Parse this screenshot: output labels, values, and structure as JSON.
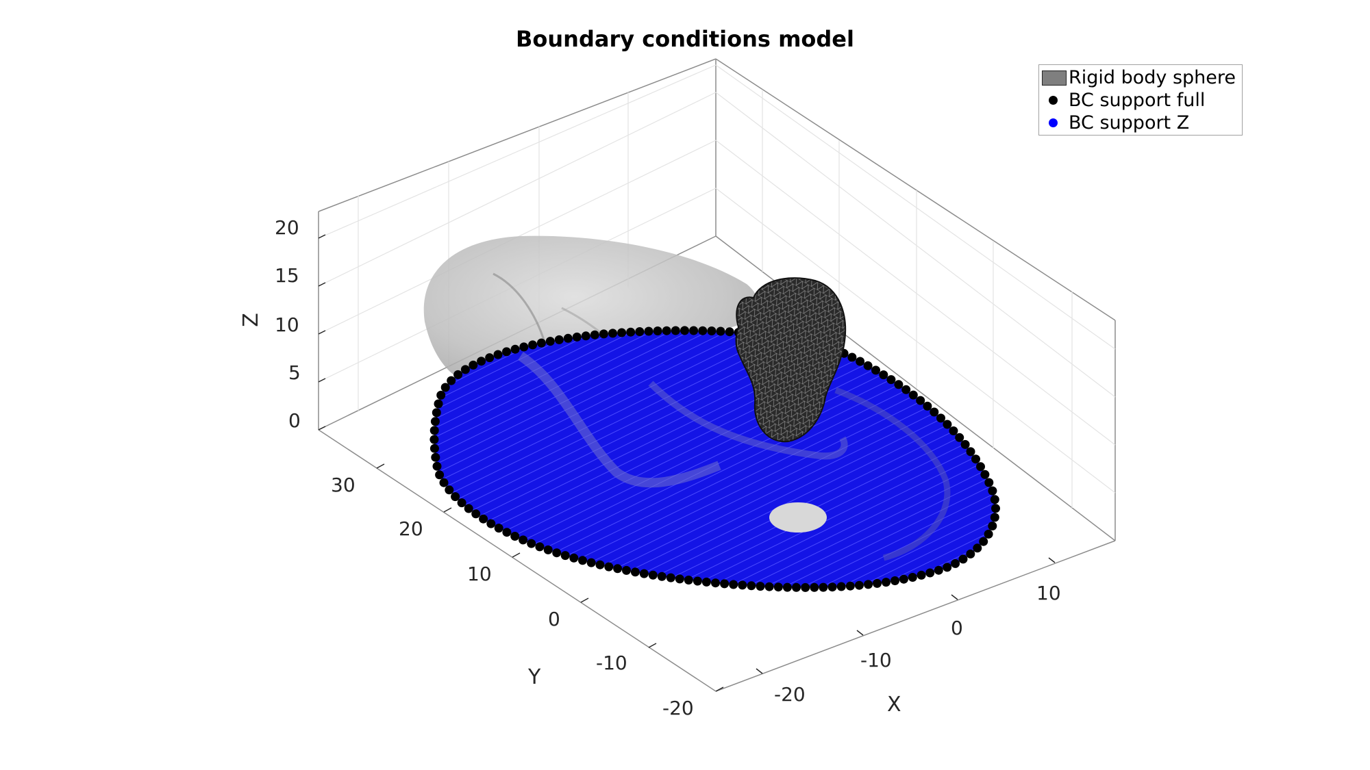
{
  "figure": {
    "title": "Boundary conditions model"
  },
  "axes": {
    "x_label": "X",
    "y_label": "Y",
    "z_label": "Z",
    "x_ticks": [
      "-20",
      "-10",
      "0",
      "10"
    ],
    "y_ticks": [
      "-20",
      "-10",
      "0",
      "10",
      "20",
      "30"
    ],
    "z_ticks": [
      "0",
      "5",
      "10",
      "15",
      "20"
    ],
    "box": true,
    "grid": true
  },
  "legend": {
    "placement": "top-right",
    "entries": [
      {
        "label": "Rigid body sphere",
        "marker": "patch",
        "color": "#7f7f7f"
      },
      {
        "label": "BC support full",
        "marker": "dot",
        "color": "#000000"
      },
      {
        "label": "BC support Z",
        "marker": "dot",
        "color": "#0000ff"
      }
    ]
  },
  "scene": {
    "ground_mesh_color": "#9e9e9e",
    "support_z_color": "#0000ff",
    "support_full_color": "#000000",
    "rigid_body_color": "#333333"
  }
}
